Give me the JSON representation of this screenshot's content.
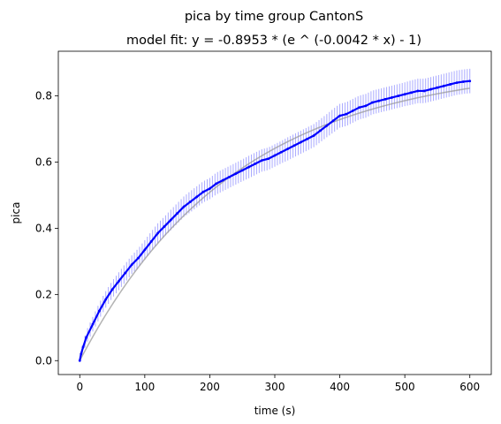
{
  "chart_data": {
    "type": "line",
    "title": "pica by time group CantonS",
    "subtitle": "model fit: y = -0.8953 * (e ^ (-0.0042 * x) - 1)",
    "xlabel": "time (s)",
    "ylabel": "pica",
    "xlim": [
      -33,
      633
    ],
    "ylim": [
      -0.042,
      0.935
    ],
    "xticks": [
      0,
      100,
      200,
      300,
      400,
      500,
      600
    ],
    "yticks": [
      0.0,
      0.2,
      0.4,
      0.6,
      0.8
    ],
    "xtick_labels": [
      "0",
      "100",
      "200",
      "300",
      "400",
      "500",
      "600"
    ],
    "ytick_labels": [
      "0.0",
      "0.2",
      "0.4",
      "0.6",
      "0.8"
    ],
    "grid": false,
    "series": [
      {
        "role": "observed mean with error bars",
        "color": "#0000ff",
        "error_color": "#aaaaff",
        "x": [
          0,
          2,
          5,
          10,
          20,
          30,
          40,
          50,
          60,
          70,
          80,
          90,
          100,
          110,
          120,
          130,
          140,
          150,
          160,
          170,
          180,
          190,
          200,
          210,
          220,
          230,
          240,
          250,
          260,
          270,
          280,
          290,
          300,
          310,
          320,
          330,
          340,
          350,
          360,
          370,
          380,
          390,
          400,
          410,
          420,
          430,
          440,
          450,
          460,
          470,
          480,
          490,
          500,
          510,
          520,
          530,
          540,
          550,
          560,
          570,
          580,
          590,
          600
        ],
        "y": [
          0.0,
          0.02,
          0.04,
          0.07,
          0.11,
          0.15,
          0.185,
          0.215,
          0.24,
          0.265,
          0.29,
          0.31,
          0.335,
          0.36,
          0.385,
          0.405,
          0.425,
          0.445,
          0.465,
          0.48,
          0.495,
          0.51,
          0.52,
          0.535,
          0.545,
          0.555,
          0.565,
          0.575,
          0.585,
          0.595,
          0.605,
          0.61,
          0.62,
          0.63,
          0.64,
          0.65,
          0.66,
          0.67,
          0.68,
          0.695,
          0.71,
          0.725,
          0.74,
          0.745,
          0.755,
          0.765,
          0.77,
          0.78,
          0.785,
          0.79,
          0.795,
          0.8,
          0.805,
          0.81,
          0.815,
          0.815,
          0.82,
          0.825,
          0.83,
          0.835,
          0.84,
          0.843,
          0.845
        ],
        "err": [
          0.0,
          0.01,
          0.015,
          0.02,
          0.022,
          0.024,
          0.025,
          0.026,
          0.027,
          0.028,
          0.028,
          0.029,
          0.029,
          0.03,
          0.03,
          0.03,
          0.031,
          0.031,
          0.031,
          0.032,
          0.032,
          0.032,
          0.032,
          0.033,
          0.033,
          0.033,
          0.033,
          0.033,
          0.034,
          0.034,
          0.034,
          0.034,
          0.034,
          0.034,
          0.035,
          0.035,
          0.035,
          0.035,
          0.035,
          0.035,
          0.035,
          0.036,
          0.036,
          0.036,
          0.036,
          0.036,
          0.036,
          0.036,
          0.036,
          0.036,
          0.036,
          0.036,
          0.036,
          0.037,
          0.037,
          0.037,
          0.037,
          0.037,
          0.037,
          0.037,
          0.037,
          0.037,
          0.037
        ]
      },
      {
        "role": "model fit curve",
        "color": "#999999",
        "equation": {
          "a": 0.8953,
          "b": 0.0042
        },
        "x_range": [
          0,
          600
        ]
      }
    ]
  }
}
